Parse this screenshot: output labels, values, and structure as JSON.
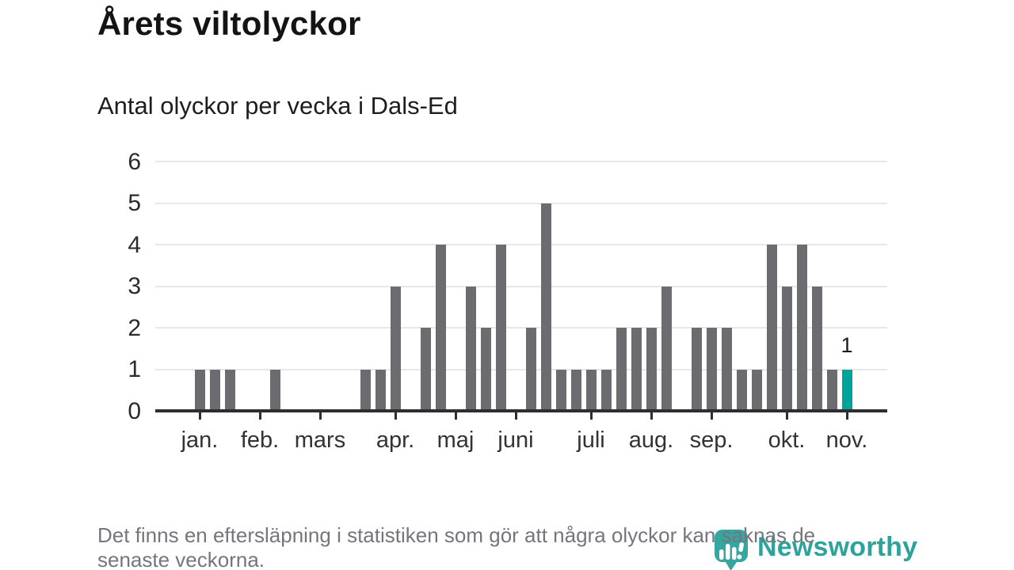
{
  "title": "Årets viltolyckor",
  "subtitle": "Antal olyckor per vecka i Dals-Ed",
  "footer": {
    "lines": [
      "Det finns en eftersläpning i statistiken som gör att några olyckor kan saknas de",
      "senaste veckorna."
    ]
  },
  "logo": {
    "wordmark": "Newsworthy",
    "icon": "newsworthy-pin-icon"
  },
  "colors": {
    "bar": "#6b6b70",
    "highlight": "#00a39a",
    "grid": "#e7e7e7",
    "axis": "#2e2e2e",
    "logo_teal": "#2ea39c",
    "footer_text": "#75757e"
  },
  "chart_data": {
    "type": "bar",
    "title": "Årets viltolyckor",
    "subtitle": "Antal olyckor per vecka i Dals-Ed",
    "x_unit": "vecka",
    "weeks": [
      1,
      2,
      3,
      4,
      5,
      6,
      7,
      8,
      9,
      10,
      11,
      12,
      13,
      14,
      15,
      16,
      17,
      18,
      19,
      20,
      21,
      22,
      23,
      24,
      25,
      26,
      27,
      28,
      29,
      30,
      31,
      32,
      33,
      34,
      35,
      36,
      37,
      38,
      39,
      40,
      41,
      42,
      43,
      44,
      45,
      46
    ],
    "values": [
      1,
      1,
      1,
      0,
      0,
      1,
      0,
      0,
      0,
      0,
      0,
      1,
      1,
      3,
      0,
      2,
      4,
      0,
      3,
      2,
      4,
      0,
      2,
      5,
      1,
      1,
      1,
      1,
      2,
      2,
      2,
      3,
      0,
      2,
      2,
      2,
      1,
      1,
      4,
      3,
      4,
      3,
      1,
      1,
      0,
      0
    ],
    "highlight_week": 44,
    "highlight_value_label": "1",
    "y_ticks": [
      0,
      1,
      2,
      3,
      4,
      5,
      6
    ],
    "ylim": [
      0,
      6
    ],
    "grid": true,
    "legend": "none",
    "month_ticks": [
      {
        "label": "jan.",
        "week": 1
      },
      {
        "label": "feb.",
        "week": 5
      },
      {
        "label": "mars",
        "week": 9
      },
      {
        "label": "apr.",
        "week": 14
      },
      {
        "label": "maj",
        "week": 18
      },
      {
        "label": "juni",
        "week": 22
      },
      {
        "label": "juli",
        "week": 27
      },
      {
        "label": "aug.",
        "week": 31
      },
      {
        "label": "sep.",
        "week": 35
      },
      {
        "label": "okt.",
        "week": 40
      },
      {
        "label": "nov.",
        "week": 44
      }
    ]
  }
}
